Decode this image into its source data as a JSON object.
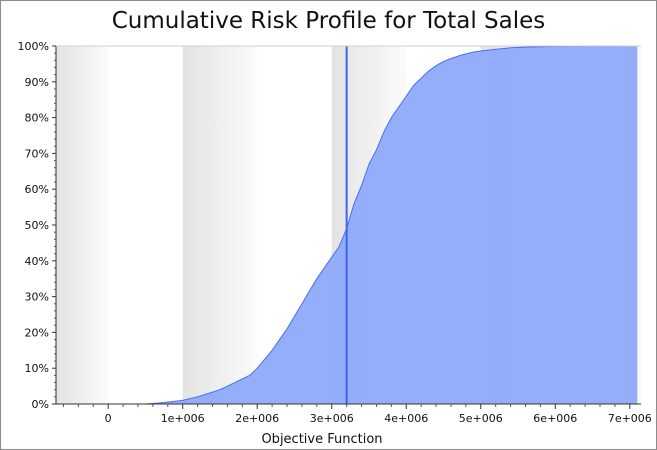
{
  "chart_data": {
    "type": "area",
    "title": "Cumulative Risk Profile for Total Sales",
    "xlabel": "Objective Function",
    "ylabel": "",
    "xlim": [
      -700000,
      7150000
    ],
    "ylim": [
      0,
      100
    ],
    "x_ticks": [
      0,
      1000000,
      2000000,
      3000000,
      4000000,
      5000000,
      6000000,
      7000000
    ],
    "x_tick_labels": [
      "0",
      "1e+006",
      "2e+006",
      "3e+006",
      "4e+006",
      "5e+006",
      "6e+006",
      "7e+006"
    ],
    "y_ticks": [
      0,
      10,
      20,
      30,
      40,
      50,
      60,
      70,
      80,
      90,
      100
    ],
    "y_tick_labels": [
      "0%",
      "10%",
      "20%",
      "30%",
      "40%",
      "50%",
      "60%",
      "70%",
      "80%",
      "90%",
      "100%"
    ],
    "grid": false,
    "series": [
      {
        "x": [
          500000,
          700000,
          1000000,
          1200000,
          1500000,
          1700000,
          1900000,
          2000000,
          2200000,
          2400000,
          2600000,
          2800000,
          3000000,
          3100000,
          3200000,
          3300000,
          3400000,
          3500000,
          3600000,
          3700000,
          3800000,
          3900000,
          4000000,
          4100000,
          4200000,
          4300000,
          4400000,
          4500000,
          4600000,
          4700000,
          4800000,
          4900000,
          5000000,
          5200000,
          5400000,
          5600000,
          5800000,
          6000000,
          7100000
        ],
        "values": [
          0,
          0.3,
          1,
          2,
          4,
          6,
          8,
          10,
          15,
          21,
          28,
          35,
          41,
          44,
          49,
          56,
          61,
          67,
          71,
          76,
          80,
          83,
          86,
          89,
          91,
          93,
          94.5,
          95.7,
          96.5,
          97.2,
          97.8,
          98.3,
          98.6,
          99.1,
          99.5,
          99.7,
          99.8,
          99.9,
          100
        ]
      }
    ],
    "marker_line_x": 3200000,
    "colors": {
      "fill": "#8faaf9",
      "stroke": "#4a6ef0",
      "marker": "#3d64f0"
    }
  }
}
